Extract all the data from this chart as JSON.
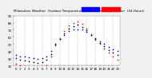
{
  "title": "Milwaukee Weather  Outdoor Temperature vs THSW Index  per Hour  (24 Hours)",
  "background_color": "#f0f0f0",
  "plot_bg": "#ffffff",
  "grid_color": "#aaaaaa",
  "hours": [
    0,
    1,
    2,
    3,
    4,
    5,
    6,
    7,
    8,
    9,
    10,
    11,
    12,
    13,
    14,
    15,
    16,
    17,
    18,
    19,
    20,
    21,
    22,
    23
  ],
  "temp": [
    35,
    33,
    32,
    31,
    30,
    29,
    30,
    32,
    40,
    50,
    57,
    63,
    68,
    70,
    71,
    70,
    67,
    63,
    58,
    54,
    50,
    46,
    43,
    40
  ],
  "thsw": [
    22,
    20,
    19,
    18,
    17,
    16,
    17,
    20,
    32,
    48,
    58,
    68,
    76,
    80,
    82,
    78,
    72,
    64,
    56,
    50,
    44,
    38,
    33,
    28
  ],
  "heat": [
    30,
    28,
    27,
    26,
    25,
    24,
    25,
    28,
    36,
    49,
    57,
    65,
    72,
    75,
    77,
    74,
    69,
    63,
    57,
    52,
    47,
    42,
    38,
    35
  ],
  "temp_color": "#0000ff",
  "thsw_color": "#ff0000",
  "heat_color": "#000000",
  "ylim": [
    20,
    90
  ],
  "ytick_labels": [
    "20",
    "30",
    "40",
    "50",
    "60",
    "70",
    "80",
    "90"
  ],
  "ytick_vals": [
    20,
    30,
    40,
    50,
    60,
    70,
    80,
    90
  ],
  "title_fontsize": 3.0,
  "tick_fontsize": 2.8,
  "marker_size": 1.5,
  "grid_x_positions": [
    0,
    2,
    4,
    6,
    8,
    10,
    12,
    14,
    16,
    18,
    20,
    22
  ]
}
